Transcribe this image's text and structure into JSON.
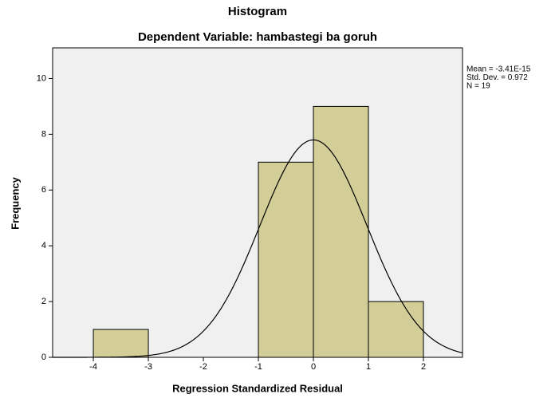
{
  "chart_data": {
    "type": "histogram",
    "title": "Histogram",
    "subtitle": "Dependent Variable: hambastegi ba goruh",
    "x_label": "Regression Standardized Residual",
    "y_label": "Frequency",
    "bins": [
      -4,
      -3,
      -2,
      -1,
      0,
      1,
      2
    ],
    "values": [
      1,
      0,
      0,
      7,
      9,
      2
    ],
    "color": "#d3ce98",
    "xlim": [
      -4.74,
      2.71
    ],
    "xticks": [
      -4,
      -3,
      -2,
      -1,
      0,
      1,
      2
    ],
    "ylim": [
      0,
      11.1
    ],
    "yticks": [
      0,
      2,
      4,
      6,
      8,
      10
    ],
    "stats": [
      {
        "value": -3.41e-15,
        "label": "Mean = -3.41E-15"
      },
      {
        "value": 0.972,
        "label": "Std. Dev. = 0.972"
      },
      {
        "value": 19,
        "label": "N = 19"
      }
    ],
    "background": "#f0f0f0"
  }
}
